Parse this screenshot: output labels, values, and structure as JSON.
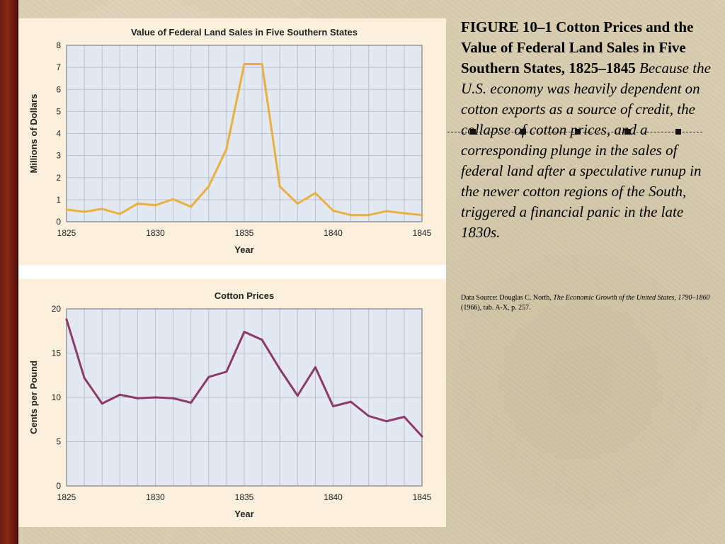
{
  "caption": {
    "figure_title": "FIGURE 10–1 Cotton Prices and the Value of Federal Land Sales in Five Southern States, 1825–1845",
    "figure_text": "Because the U.S. economy was heavily dependent on cotton exports as a source of credit, the collapse of cotton prices, and a corresponding plunge in the sales of federal land after a speculative runup in the newer cotton regions of the South, triggered a financial panic in the late 1830s.",
    "source_prefix": "Data Source: Douglas C. North, ",
    "source_book": "The Economic Growth of the United States, 1790–1860",
    "source_suffix": " (1966), tab. A-X, p. 257."
  },
  "chart_data": [
    {
      "type": "line",
      "title": "Value of Federal Land Sales in Five Southern States",
      "xlabel": "Year",
      "ylabel": "Millions of Dollars",
      "xlim": [
        1825,
        1845
      ],
      "ylim": [
        0,
        8
      ],
      "xticks": [
        1825,
        1830,
        1835,
        1840,
        1845
      ],
      "yticks": [
        0,
        1,
        2,
        3,
        4,
        5,
        6,
        7,
        8
      ],
      "grid": true,
      "line_color": "#e8b040",
      "x": [
        1825,
        1826,
        1827,
        1828,
        1829,
        1830,
        1831,
        1832,
        1833,
        1834,
        1835,
        1836,
        1837,
        1838,
        1839,
        1840,
        1841,
        1842,
        1843,
        1844,
        1845
      ],
      "values": [
        0.55,
        0.45,
        0.58,
        0.35,
        0.82,
        0.75,
        1.02,
        0.68,
        1.6,
        3.3,
        7.15,
        7.15,
        1.6,
        0.82,
        1.3,
        0.5,
        0.3,
        0.3,
        0.48,
        0.38,
        0.3
      ]
    },
    {
      "type": "line",
      "title": "Cotton Prices",
      "xlabel": "Year",
      "ylabel": "Cents per Pound",
      "xlim": [
        1825,
        1845
      ],
      "ylim": [
        0,
        20
      ],
      "xticks": [
        1825,
        1830,
        1835,
        1840,
        1845
      ],
      "yticks": [
        0,
        5,
        10,
        15,
        20
      ],
      "grid": true,
      "line_color": "#8a3a6a",
      "x": [
        1825,
        1826,
        1827,
        1828,
        1829,
        1830,
        1831,
        1832,
        1833,
        1834,
        1835,
        1836,
        1837,
        1838,
        1839,
        1840,
        1841,
        1842,
        1843,
        1844,
        1845
      ],
      "values": [
        18.8,
        12.2,
        9.3,
        10.3,
        9.9,
        10.0,
        9.9,
        9.4,
        12.3,
        12.9,
        17.4,
        16.5,
        13.2,
        10.2,
        13.4,
        9.0,
        9.5,
        7.9,
        7.3,
        7.8,
        5.6
      ]
    }
  ]
}
